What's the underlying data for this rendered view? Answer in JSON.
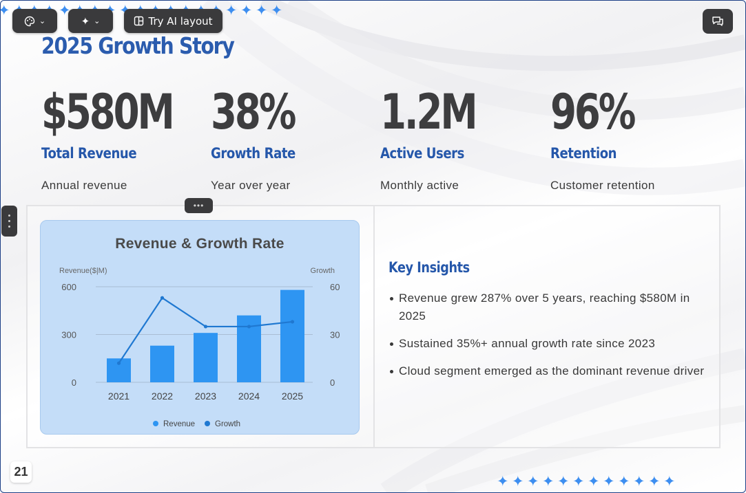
{
  "toolbar": {
    "theme_icon": "palette-icon",
    "magic_icon": "sparkle-icon",
    "layout_icon": "layout-icon",
    "layout_label": "Try AI layout",
    "chat_icon": "chat-icon"
  },
  "slide": {
    "title": "2025 Growth Story",
    "page_number": "21",
    "accent_color": "#2557aa",
    "stats": [
      {
        "value": "$580M",
        "label": "Total Revenue",
        "sub": "Annual revenue"
      },
      {
        "value": "38%",
        "label": "Growth Rate",
        "sub": "Year over year"
      },
      {
        "value": "1.2M",
        "label": "Active Users",
        "sub": "Monthly active"
      },
      {
        "value": "96%",
        "label": "Retention",
        "sub": "Customer retention"
      }
    ],
    "insights_title": "Key Insights",
    "insights": [
      "Revenue grew 287% over 5 years, reaching $580M in 2025",
      "Sustained 35%+ annual growth rate since 2023",
      "Cloud segment emerged as the dominant revenue driver"
    ]
  },
  "chart_data": {
    "type": "bar",
    "title": "Revenue & Growth Rate",
    "ylabel": "Revenue($|M)",
    "y2label": "Growth",
    "categories": [
      "2021",
      "2022",
      "2023",
      "2024",
      "2025"
    ],
    "ylim": [
      0,
      600
    ],
    "yticks": [
      "0",
      "300",
      "600"
    ],
    "y2lim": [
      0,
      60
    ],
    "y2ticks": [
      "0",
      "30",
      "60"
    ],
    "series": [
      {
        "name": "Revenue",
        "type": "bar",
        "axis": "left",
        "color": "#2e95f2",
        "values": [
          150,
          230,
          310,
          420,
          580
        ]
      },
      {
        "name": "Growth",
        "type": "line",
        "axis": "right",
        "color": "#1f78d1",
        "values": [
          12,
          53,
          35,
          35,
          38
        ]
      }
    ],
    "grid": true,
    "legend": "bottom"
  }
}
